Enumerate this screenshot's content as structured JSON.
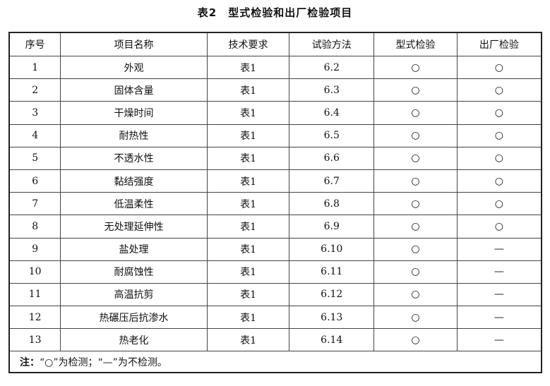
{
  "title": "表2　型式检验和出厂检验项目",
  "headers": [
    "序号",
    "项目名称",
    "技术要求",
    "试验方法",
    "型式检验",
    "出厂检验"
  ],
  "rows": [
    [
      "1",
      "外观",
      "表1",
      "6.2",
      "○",
      "○"
    ],
    [
      "2",
      "固体含量",
      "表1",
      "6.3",
      "○",
      "○"
    ],
    [
      "3",
      "干燥时间",
      "表1",
      "6.4",
      "○",
      "○"
    ],
    [
      "4",
      "耐热性",
      "表1",
      "6.5",
      "○",
      "○"
    ],
    [
      "5",
      "不透水性",
      "表1",
      "6.6",
      "○",
      "○"
    ],
    [
      "6",
      "黏结强度",
      "表1",
      "6.7",
      "○",
      "○"
    ],
    [
      "7",
      "低温柔性",
      "表1",
      "6.8",
      "○",
      "○"
    ],
    [
      "8",
      "无处理延伸性",
      "表1",
      "6.9",
      "○",
      "○"
    ],
    [
      "9",
      "盐处理",
      "表1",
      "6.10",
      "○",
      "—"
    ],
    [
      "10",
      "耐腐蚀性",
      "表1",
      "6.11",
      "○",
      "—"
    ],
    [
      "11",
      "高温抗剪",
      "表1",
      "6.12",
      "○",
      "—"
    ],
    [
      "12",
      "热碾压后抗渗水",
      "表1",
      "6.13",
      "○",
      "—"
    ],
    [
      "13",
      "热老化",
      "表1",
      "6.14",
      "○",
      "—"
    ]
  ],
  "note": {
    "label": "注：",
    "text": "“○”为检测；“—”为不检测。"
  }
}
